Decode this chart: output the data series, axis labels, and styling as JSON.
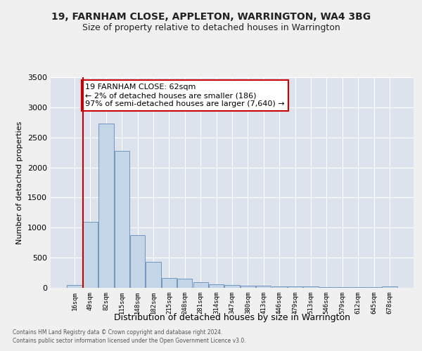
{
  "title1": "19, FARNHAM CLOSE, APPLETON, WARRINGTON, WA4 3BG",
  "title2": "Size of property relative to detached houses in Warrington",
  "xlabel": "Distribution of detached houses by size in Warrington",
  "ylabel": "Number of detached properties",
  "categories": [
    "16sqm",
    "49sqm",
    "82sqm",
    "115sqm",
    "148sqm",
    "182sqm",
    "215sqm",
    "248sqm",
    "281sqm",
    "314sqm",
    "347sqm",
    "380sqm",
    "413sqm",
    "446sqm",
    "479sqm",
    "513sqm",
    "546sqm",
    "579sqm",
    "612sqm",
    "645sqm",
    "678sqm"
  ],
  "values": [
    50,
    1100,
    2730,
    2280,
    870,
    430,
    165,
    155,
    90,
    60,
    50,
    40,
    30,
    25,
    20,
    18,
    15,
    12,
    10,
    8,
    25
  ],
  "bar_color": "#c5d5e8",
  "bar_edge_color": "#7096be",
  "vline_color": "#cc0000",
  "vline_x_index": 1,
  "annotation_text": "19 FARNHAM CLOSE: 62sqm\n← 2% of detached houses are smaller (186)\n97% of semi-detached houses are larger (7,640) →",
  "annotation_box_facecolor": "#ffffff",
  "annotation_box_edgecolor": "#cc0000",
  "ylim": [
    0,
    3500
  ],
  "yticks": [
    0,
    500,
    1000,
    1500,
    2000,
    2500,
    3000,
    3500
  ],
  "background_color": "#dde3ed",
  "grid_color": "#ffffff",
  "footer1": "Contains HM Land Registry data © Crown copyright and database right 2024.",
  "footer2": "Contains public sector information licensed under the Open Government Licence v3.0."
}
